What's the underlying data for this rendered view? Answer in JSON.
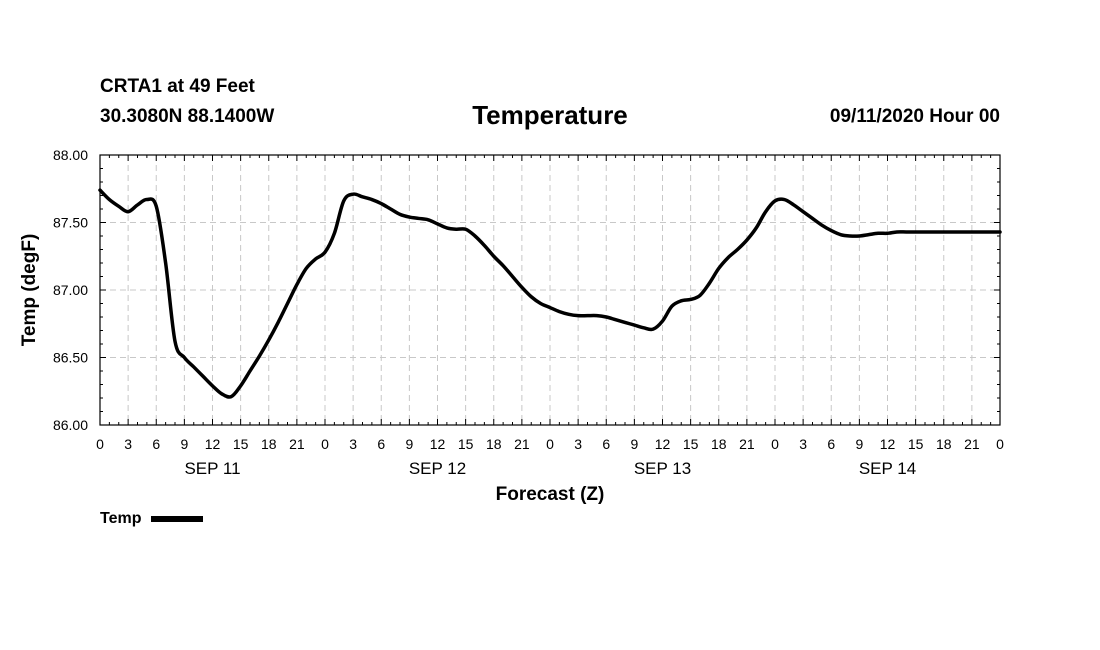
{
  "header": {
    "station": "CRTA1 at 49 Feet",
    "latlon": "30.3080N 88.1400W",
    "datetime": "09/11/2020 Hour 00"
  },
  "chart_data": {
    "type": "line",
    "title": "Temperature",
    "xlabel": "Forecast (Z)",
    "ylabel": "Temp (degF)",
    "ylim": [
      86.0,
      88.0
    ],
    "yticks": [
      "86.00",
      "86.50",
      "87.00",
      "87.50",
      "88.00"
    ],
    "xlim": [
      0,
      96
    ],
    "xtick_hours": [
      0,
      3,
      6,
      9,
      12,
      15,
      18,
      21,
      24,
      27,
      30,
      33,
      36,
      39,
      42,
      45,
      48,
      51,
      54,
      57,
      60,
      63,
      66,
      69,
      72,
      75,
      78,
      81,
      84,
      87,
      90,
      93,
      96
    ],
    "xtick_labels": [
      "0",
      "3",
      "6",
      "9",
      "12",
      "15",
      "18",
      "21",
      "0",
      "3",
      "6",
      "9",
      "12",
      "15",
      "18",
      "21",
      "0",
      "3",
      "6",
      "9",
      "12",
      "15",
      "18",
      "21",
      "0",
      "3",
      "6",
      "9",
      "12",
      "15",
      "18",
      "21",
      "0"
    ],
    "day_labels": [
      {
        "hour": 12,
        "label": "SEP 11"
      },
      {
        "hour": 36,
        "label": "SEP 12"
      },
      {
        "hour": 60,
        "label": "SEP 13"
      },
      {
        "hour": 84,
        "label": "SEP 14"
      }
    ],
    "grid": true,
    "legend_position": "bottom-left",
    "series": [
      {
        "name": "Temp",
        "color": "#000000",
        "x": [
          0,
          1,
          2,
          3,
          4,
          5,
          6,
          7,
          8,
          9,
          10,
          11,
          12,
          13,
          14,
          15,
          16,
          17,
          18,
          19,
          20,
          21,
          22,
          23,
          24,
          25,
          26,
          27,
          28,
          29,
          30,
          31,
          32,
          33,
          34,
          35,
          36,
          37,
          38,
          39,
          40,
          41,
          42,
          43,
          44,
          45,
          46,
          47,
          48,
          49,
          50,
          51,
          52,
          53,
          54,
          55,
          56,
          57,
          58,
          59,
          60,
          61,
          62,
          63,
          64,
          65,
          66,
          67,
          68,
          69,
          70,
          71,
          72,
          73,
          74,
          75,
          76,
          77,
          78,
          79,
          80,
          81,
          82,
          83,
          84,
          85,
          86,
          87,
          88,
          89,
          90,
          91,
          92,
          93,
          94,
          95,
          96
        ],
        "values": [
          87.74,
          87.67,
          87.62,
          87.58,
          87.63,
          87.67,
          87.62,
          87.2,
          86.62,
          86.5,
          86.43,
          86.36,
          86.29,
          86.23,
          86.21,
          86.29,
          86.4,
          86.51,
          86.63,
          86.76,
          86.9,
          87.04,
          87.16,
          87.23,
          87.28,
          87.42,
          87.66,
          87.71,
          87.69,
          87.67,
          87.64,
          87.6,
          87.56,
          87.54,
          87.53,
          87.52,
          87.49,
          87.46,
          87.45,
          87.45,
          87.4,
          87.33,
          87.25,
          87.18,
          87.1,
          87.02,
          86.95,
          86.9,
          86.87,
          86.84,
          86.82,
          86.81,
          86.81,
          86.81,
          86.8,
          86.78,
          86.76,
          86.74,
          86.72,
          86.71,
          86.77,
          86.88,
          86.92,
          86.93,
          86.96,
          87.05,
          87.16,
          87.24,
          87.3,
          87.37,
          87.46,
          87.58,
          87.66,
          87.67,
          87.63,
          87.58,
          87.53,
          87.48,
          87.44,
          87.41,
          87.4,
          87.4,
          87.41,
          87.42,
          87.42,
          87.43,
          87.43,
          87.43,
          87.43,
          87.43,
          87.43,
          87.43,
          87.43,
          87.43,
          87.43,
          87.43,
          87.43
        ]
      }
    ]
  }
}
